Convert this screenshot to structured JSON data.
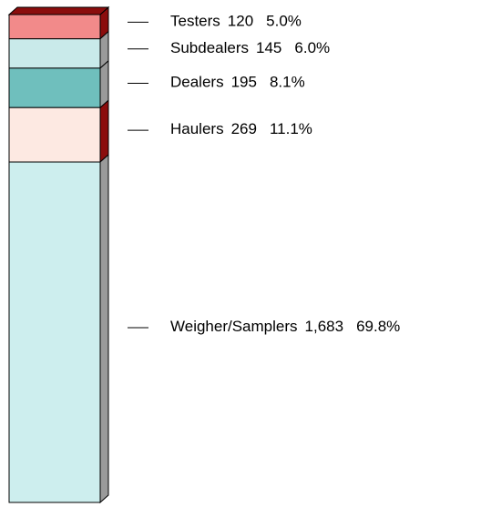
{
  "chart_data": {
    "type": "stacked_column",
    "categories": [
      "Testers",
      "Subdealers",
      "Dealers",
      "Haulers",
      "Weigher/Samplers"
    ],
    "values": [
      120,
      145,
      195,
      269,
      1683
    ],
    "value_labels": [
      "120",
      "145",
      "195",
      "269",
      "1,683"
    ],
    "percents": [
      5.0,
      6.0,
      8.1,
      11.1,
      69.8
    ],
    "percent_labels": [
      "5.0%",
      "6.0%",
      "8.1%",
      "11.1%",
      "69.8%"
    ],
    "colors": [
      "#f28a8a",
      "#c9eaea",
      "#6fbfbd",
      "#fde9e2",
      "#cdeeee"
    ],
    "side_colors": [
      "#8b0d0d",
      "#9a9a9a",
      "#9a9a9a",
      "#8b0d0d",
      "#9a9a9a"
    ]
  }
}
